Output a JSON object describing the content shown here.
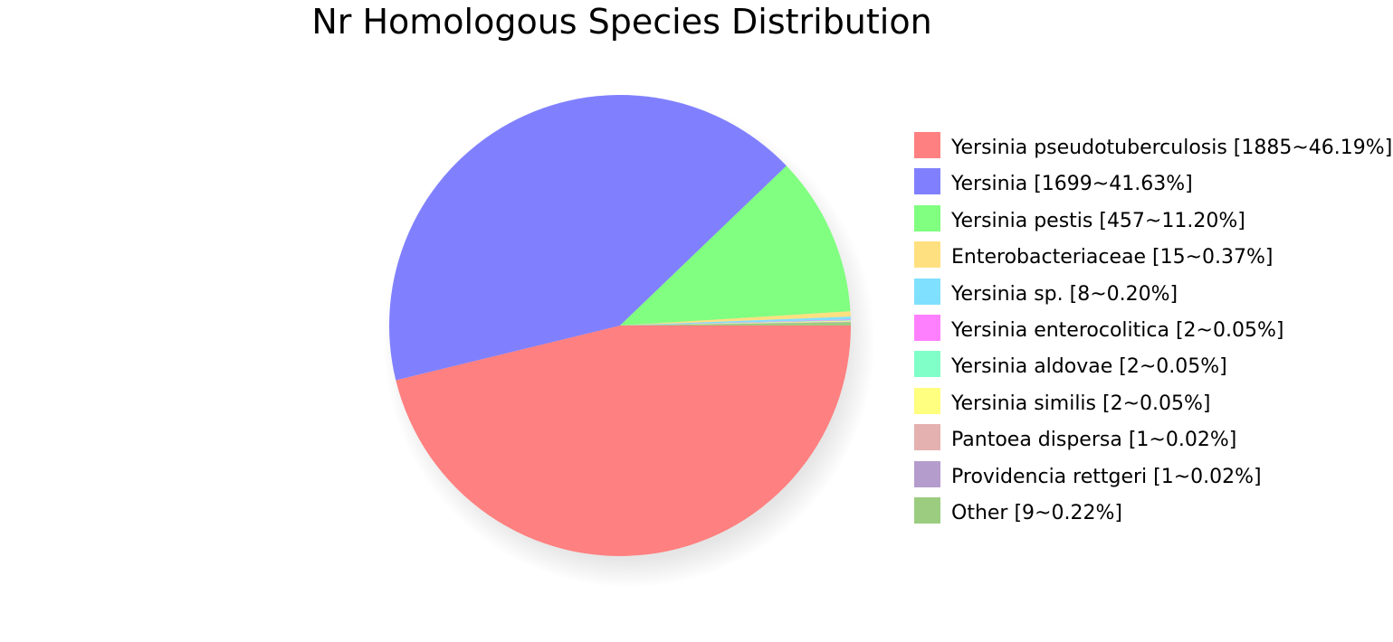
{
  "chart_data": {
    "type": "pie",
    "title": "Nr Homologous Species Distribution",
    "slices": [
      {
        "label": "Yersinia pseudotuberculosis [1885~46.19%]",
        "value": 1885,
        "percent": 46.19,
        "color": "#ff8080"
      },
      {
        "label": "Yersinia [1699~41.63%]",
        "value": 1699,
        "percent": 41.63,
        "color": "#8080ff"
      },
      {
        "label": "Yersinia pestis [457~11.20%]",
        "value": 457,
        "percent": 11.2,
        "color": "#80ff80"
      },
      {
        "label": "Enterobacteriaceae [15~0.37%]",
        "value": 15,
        "percent": 0.37,
        "color": "#ffe080"
      },
      {
        "label": "Yersinia sp. [8~0.20%]",
        "value": 8,
        "percent": 0.2,
        "color": "#80e0ff"
      },
      {
        "label": "Yersinia enterocolitica [2~0.05%]",
        "value": 2,
        "percent": 0.05,
        "color": "#ff80ff"
      },
      {
        "label": "Yersinia aldovae [2~0.05%]",
        "value": 2,
        "percent": 0.05,
        "color": "#80ffc8"
      },
      {
        "label": "Yersinia similis [2~0.05%]",
        "value": 2,
        "percent": 0.05,
        "color": "#ffff80"
      },
      {
        "label": "Pantoea dispersa [1~0.02%]",
        "value": 1,
        "percent": 0.02,
        "color": "#e4b0b0"
      },
      {
        "label": "Providencia rettgeri [1~0.02%]",
        "value": 1,
        "percent": 0.02,
        "color": "#b49ccc"
      },
      {
        "label": "Other [9~0.22%]",
        "value": 9,
        "percent": 0.22,
        "color": "#9ccc80"
      }
    ],
    "legend_position": "right"
  }
}
